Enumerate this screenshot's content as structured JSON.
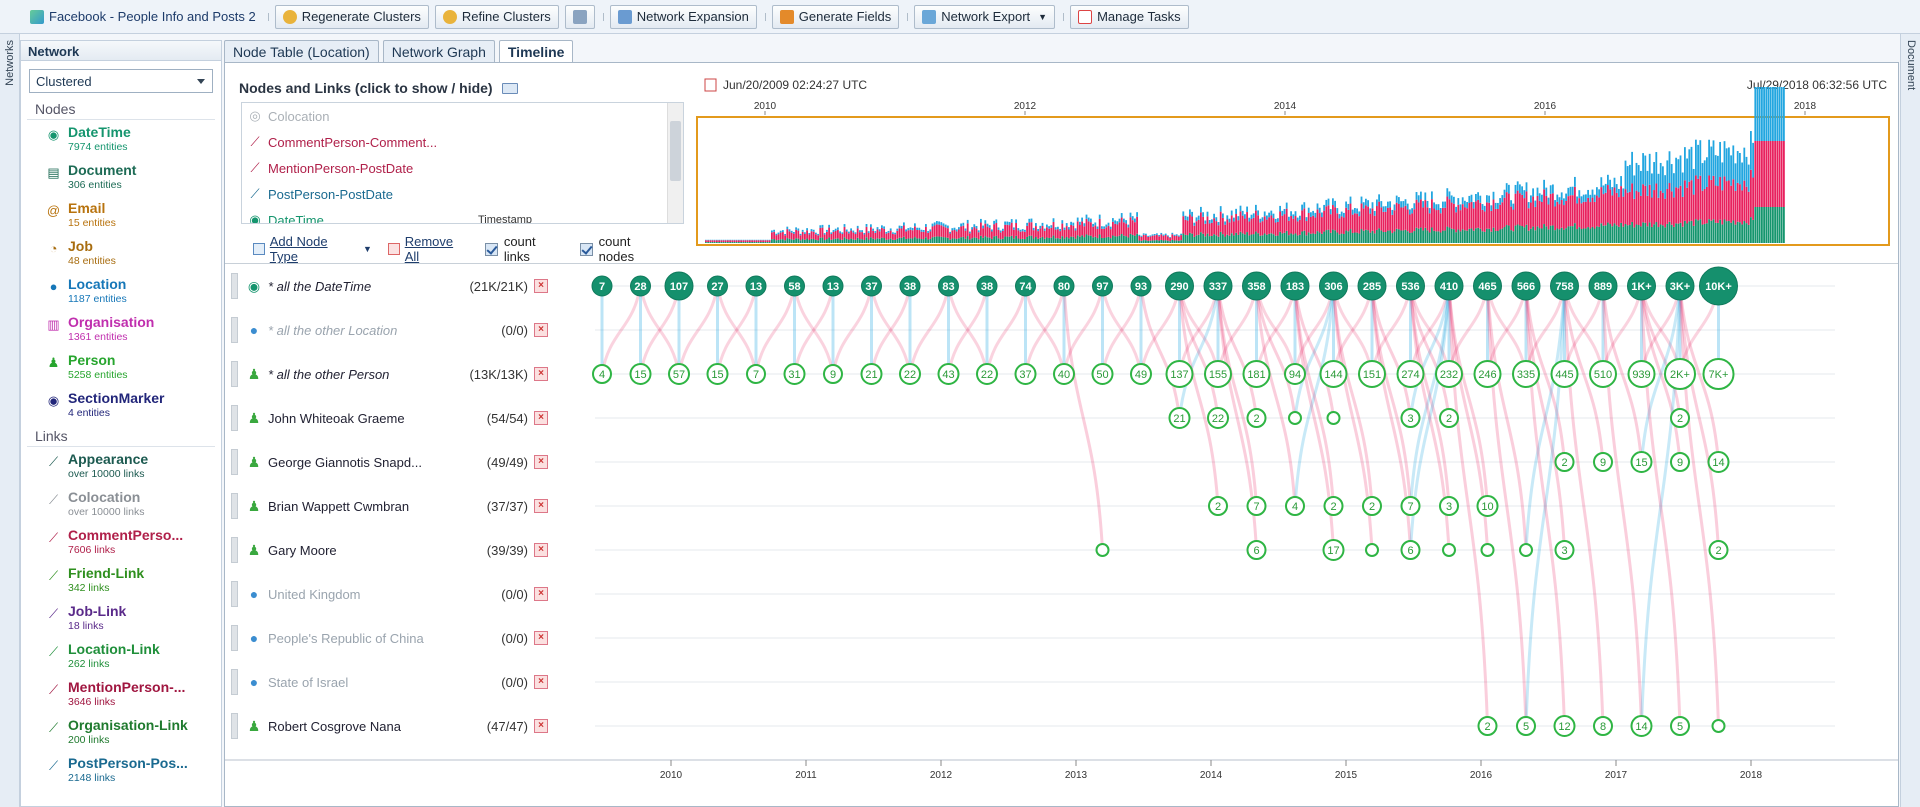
{
  "toolbar": {
    "title": "Facebook - People Info and Posts 2",
    "regenerate": "Regenerate Clusters",
    "refine": "Refine Clusters",
    "expansion": "Network Expansion",
    "generate": "Generate Fields",
    "export": "Network Export",
    "tasks": "Manage Tasks"
  },
  "edges": {
    "left": "Networks",
    "right": "Document"
  },
  "sidebar": {
    "title": "Network",
    "mode": "Clustered",
    "nodes_heading": "Nodes",
    "links_heading": "Links",
    "nodes": [
      {
        "name": "DateTime",
        "count": "7974 entities",
        "color": "#15956e",
        "icon": "datetime-icon"
      },
      {
        "name": "Document",
        "count": "306 entities",
        "color": "#1d6b55",
        "icon": "document-icon"
      },
      {
        "name": "Email",
        "count": "15 entities",
        "color": "#b8730e",
        "icon": "email-icon"
      },
      {
        "name": "Job",
        "count": "48 entities",
        "color": "#a86d10",
        "icon": "job-icon"
      },
      {
        "name": "Location",
        "count": "1187 entities",
        "color": "#1677b8",
        "icon": "globe-icon"
      },
      {
        "name": "Organisation",
        "count": "1361 entities",
        "color": "#c02fae",
        "icon": "organisation-icon"
      },
      {
        "name": "Person",
        "count": "5258 entities",
        "color": "#27a52e",
        "icon": "person-icon"
      },
      {
        "name": "SectionMarker",
        "count": "4 entities",
        "color": "#22267a",
        "icon": "section-marker-icon"
      }
    ],
    "links": [
      {
        "name": "Appearance",
        "count": "over 10000 links",
        "color": "#1c5a50"
      },
      {
        "name": "Colocation",
        "count": "over 10000 links",
        "color": "#8a8f95"
      },
      {
        "name": "CommentPerso...",
        "count": "7606 links",
        "color": "#b0204a"
      },
      {
        "name": "Friend-Link",
        "count": "342 links",
        "color": "#2e8f1e"
      },
      {
        "name": "Job-Link",
        "count": "18 links",
        "color": "#5a2a8a"
      },
      {
        "name": "Location-Link",
        "count": "262 links",
        "color": "#1f8f3a"
      },
      {
        "name": "MentionPerson-...",
        "count": "3646 links",
        "color": "#a01640"
      },
      {
        "name": "Organisation-Link",
        "count": "200 links",
        "color": "#1f7a2e"
      },
      {
        "name": "PostPerson-Pos...",
        "count": "2148 links",
        "color": "#1a6a90"
      }
    ]
  },
  "tabs": [
    "Node Table (Location)",
    "Network Graph",
    "Timeline"
  ],
  "legend": {
    "title": "Nodes and Links (click to show / hide)",
    "items": [
      {
        "label": "Colocation",
        "color": "#aab0b6",
        "icon": "colocation-icon",
        "extra": ""
      },
      {
        "label": "CommentPerson-Comment...",
        "color": "#b0204a",
        "icon": "link-icon",
        "extra": ""
      },
      {
        "label": "MentionPerson-PostDate",
        "color": "#b0204a",
        "icon": "link-icon",
        "extra": ""
      },
      {
        "label": "PostPerson-PostDate",
        "color": "#1a6a90",
        "icon": "link-icon",
        "extra": ""
      },
      {
        "label": "DateTime",
        "color": "#15956e",
        "icon": "datetime-icon",
        "extra": "Timestamp"
      }
    ],
    "add_node_type": "Add Node Type",
    "remove_all": "Remove All",
    "count_links": "count links",
    "count_nodes": "count nodes"
  },
  "timebar": {
    "start": "Jun/20/2009 02:24:27 UTC",
    "end": "Jul/29/2018 06:32:56 UTC",
    "ticks": [
      "2010",
      "2012",
      "2014",
      "2016",
      "2018"
    ]
  },
  "rows": [
    {
      "name": "* all the DateTime",
      "count": "(21K/21K)",
      "type": "datetime",
      "muted": false,
      "italic": true
    },
    {
      "name": "* all the other Location",
      "count": "(0/0)",
      "type": "location",
      "muted": true,
      "italic": true
    },
    {
      "name": "* all the other Person",
      "count": "(13K/13K)",
      "type": "person",
      "muted": false,
      "italic": true
    },
    {
      "name": "John Whiteoak Graeme",
      "count": "(54/54)",
      "type": "person",
      "muted": false,
      "italic": false
    },
    {
      "name": "George Giannotis Snapd...",
      "count": "(49/49)",
      "type": "person",
      "muted": false,
      "italic": false
    },
    {
      "name": "Brian Wappett Cwmbran",
      "count": "(37/37)",
      "type": "person",
      "muted": false,
      "italic": false
    },
    {
      "name": "Gary Moore",
      "count": "(39/39)",
      "type": "person",
      "muted": false,
      "italic": false
    },
    {
      "name": "United Kingdom",
      "count": "(0/0)",
      "type": "location",
      "muted": true,
      "italic": false
    },
    {
      "name": "People's Republic of China",
      "count": "(0/0)",
      "type": "location",
      "muted": true,
      "italic": false
    },
    {
      "name": "State of Israel",
      "count": "(0/0)",
      "type": "location",
      "muted": true,
      "italic": false
    },
    {
      "name": "Robert Cosgrove Nana",
      "count": "(47/47)",
      "type": "person",
      "muted": false,
      "italic": false
    }
  ],
  "timeline": {
    "x_ticks": [
      "2010",
      "2011",
      "2012",
      "2013",
      "2014",
      "2015",
      "2016",
      "2017",
      "2018"
    ],
    "columns": 30,
    "datetime_row": [
      "7",
      "28",
      "107",
      "27",
      "13",
      "58",
      "13",
      "37",
      "38",
      "83",
      "38",
      "74",
      "80",
      "97",
      "93",
      "290",
      "337",
      "358",
      "183",
      "306",
      "285",
      "536",
      "410",
      "465",
      "566",
      "758",
      "889",
      "1K+",
      "3K+",
      "10K+"
    ],
    "person_row": [
      "4",
      "15",
      "57",
      "15",
      "7",
      "31",
      "9",
      "21",
      "22",
      "43",
      "22",
      "37",
      "40",
      "50",
      "49",
      "137",
      "155",
      "181",
      "94",
      "144",
      "151",
      "274",
      "232",
      "246",
      "335",
      "445",
      "510",
      "939",
      "2K+",
      "7K+"
    ],
    "people": [
      {
        "row": 3,
        "marks": [
          [
            15,
            "21"
          ],
          [
            16,
            "22"
          ],
          [
            17,
            "2"
          ],
          [
            18,
            ""
          ],
          [
            19,
            ""
          ],
          [
            21,
            "3"
          ],
          [
            22,
            "2"
          ],
          [
            28,
            "2"
          ]
        ]
      },
      {
        "row": 4,
        "marks": [
          [
            25,
            "2"
          ],
          [
            26,
            "9"
          ],
          [
            27,
            "15"
          ],
          [
            28,
            "9"
          ],
          [
            29,
            "14"
          ]
        ]
      },
      {
        "row": 5,
        "marks": [
          [
            16,
            "2"
          ],
          [
            17,
            "7"
          ],
          [
            18,
            "4"
          ],
          [
            19,
            "2"
          ],
          [
            20,
            "2"
          ],
          [
            21,
            "7"
          ],
          [
            22,
            "3"
          ],
          [
            23,
            "10"
          ]
        ]
      },
      {
        "row": 6,
        "marks": [
          [
            13,
            ""
          ],
          [
            17,
            "6"
          ],
          [
            19,
            "17"
          ],
          [
            20,
            ""
          ],
          [
            21,
            "6"
          ],
          [
            22,
            ""
          ],
          [
            23,
            ""
          ],
          [
            24,
            ""
          ],
          [
            25,
            "3"
          ],
          [
            29,
            "2"
          ]
        ]
      },
      {
        "row": 10,
        "marks": [
          [
            23,
            "2"
          ],
          [
            24,
            "5"
          ],
          [
            25,
            "12"
          ],
          [
            26,
            "8"
          ],
          [
            27,
            "14"
          ],
          [
            28,
            "5"
          ],
          [
            29,
            ""
          ]
        ]
      }
    ]
  },
  "colors": {
    "accent": "#e39a1c",
    "datetime": "#15956e",
    "person": "#27b03a",
    "mention": "#e8215e",
    "post": "#22a6e0"
  }
}
